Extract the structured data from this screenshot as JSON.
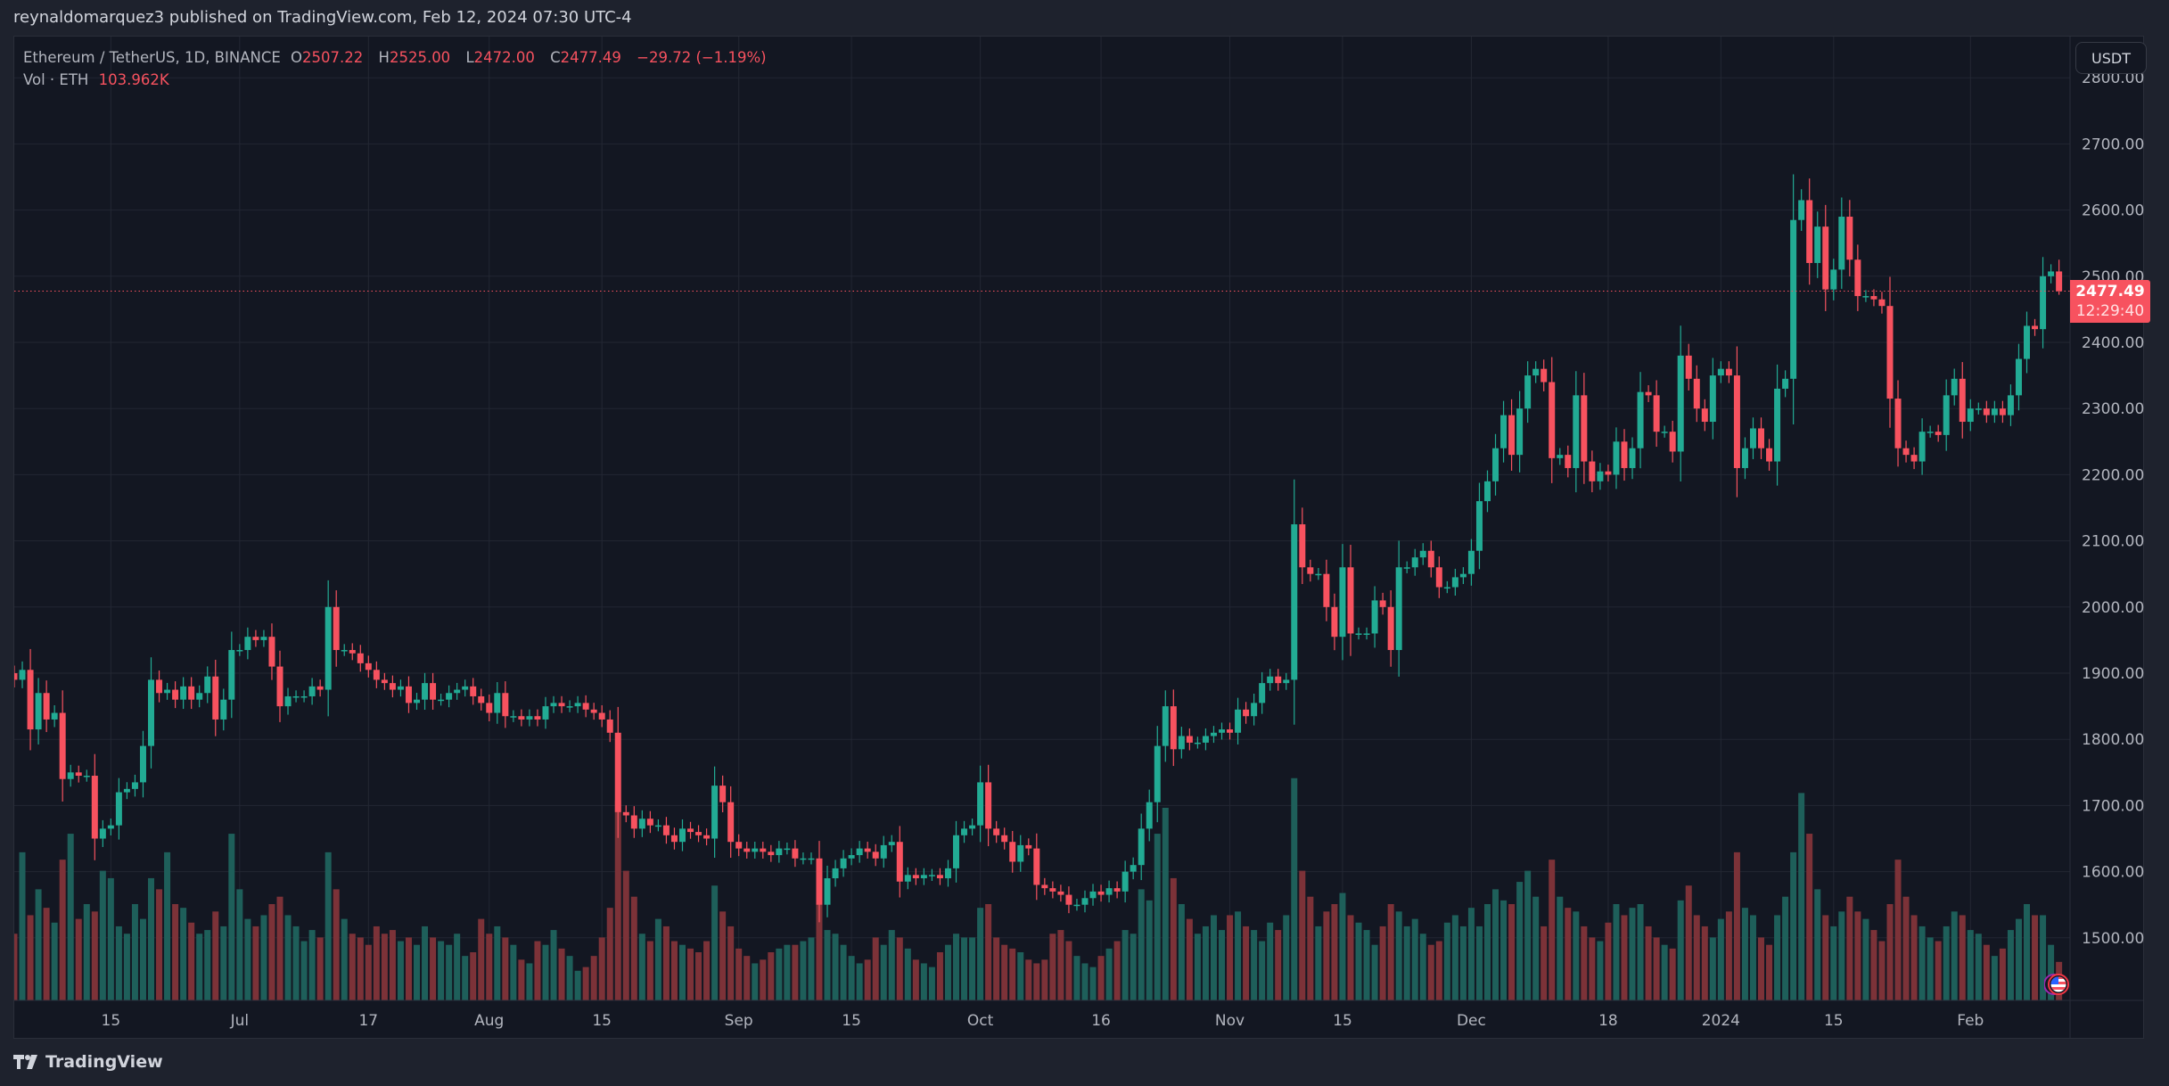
{
  "header": {
    "published": "reynaldomarquez3 published on TradingView.com, Feb 12, 2024 07:30 UTC-4"
  },
  "legend": {
    "symbol": "Ethereum / TetherUS, 1D, BINANCE",
    "o_label": "O",
    "o": "2507.22",
    "h_label": "H",
    "h": "2525.00",
    "l_label": "L",
    "l": "2472.00",
    "c_label": "C",
    "c": "2477.49",
    "change": "−29.72 (−1.19%)",
    "vol_label": "Vol · ETH",
    "vol": "103.962K"
  },
  "currency_button": "USDT",
  "last_price": {
    "price": "2477.49",
    "countdown": "12:29:40"
  },
  "branding": {
    "logo_text": "TradingView"
  },
  "colors": {
    "up": "#22ab94",
    "down": "#f7525f",
    "vol_up": "#1e5f5a",
    "vol_down": "#7c3238",
    "bg": "#131722",
    "grid": "#232733"
  },
  "chart_data": {
    "type": "candlestick",
    "title": "Ethereum / TetherUS, 1D, BINANCE",
    "ylabel": "USDT",
    "ylim": [
      1390,
      2830
    ],
    "y_ticks": [
      "1500.00",
      "1600.00",
      "1700.00",
      "1800.00",
      "1900.00",
      "2000.00",
      "2100.00",
      "2200.00",
      "2300.00",
      "2400.00",
      "2500.00",
      "2600.00",
      "2700.00",
      "2800.00"
    ],
    "x_ticks": [
      {
        "day": 12,
        "label": "15"
      },
      {
        "day": 28,
        "label": "Jul"
      },
      {
        "day": 44,
        "label": "17"
      },
      {
        "day": 59,
        "label": "Aug"
      },
      {
        "day": 73,
        "label": "15"
      },
      {
        "day": 90,
        "label": "Sep"
      },
      {
        "day": 104,
        "label": "15"
      },
      {
        "day": 120,
        "label": "Oct"
      },
      {
        "day": 135,
        "label": "16"
      },
      {
        "day": 151,
        "label": "Nov"
      },
      {
        "day": 165,
        "label": "15"
      },
      {
        "day": 181,
        "label": "Dec"
      },
      {
        "day": 198,
        "label": "18"
      },
      {
        "day": 212,
        "label": "2024"
      },
      {
        "day": 226,
        "label": "15"
      },
      {
        "day": 243,
        "label": "Feb"
      }
    ],
    "last_candle": {
      "o": 2507.22,
      "h": 2525.0,
      "l": 2472.0,
      "c": 2477.49
    },
    "closes": [
      1890,
      1905,
      1815,
      1870,
      1830,
      1840,
      1740,
      1750,
      1745,
      1745,
      1650,
      1665,
      1670,
      1720,
      1725,
      1735,
      1790,
      1890,
      1870,
      1875,
      1860,
      1880,
      1860,
      1870,
      1895,
      1830,
      1860,
      1935,
      1935,
      1955,
      1950,
      1955,
      1910,
      1850,
      1865,
      1865,
      1865,
      1880,
      1875,
      2000,
      1935,
      1935,
      1930,
      1915,
      1905,
      1890,
      1885,
      1875,
      1880,
      1855,
      1860,
      1885,
      1860,
      1860,
      1870,
      1875,
      1880,
      1865,
      1855,
      1840,
      1870,
      1835,
      1835,
      1830,
      1835,
      1830,
      1850,
      1855,
      1850,
      1850,
      1855,
      1845,
      1840,
      1830,
      1810,
      1690,
      1685,
      1665,
      1680,
      1670,
      1670,
      1655,
      1645,
      1665,
      1660,
      1655,
      1650,
      1730,
      1705,
      1645,
      1635,
      1630,
      1635,
      1630,
      1625,
      1635,
      1635,
      1620,
      1620,
      1620,
      1550,
      1590,
      1605,
      1620,
      1625,
      1635,
      1630,
      1620,
      1640,
      1645,
      1585,
      1595,
      1590,
      1595,
      1595,
      1590,
      1605,
      1655,
      1665,
      1670,
      1735,
      1665,
      1655,
      1645,
      1615,
      1640,
      1635,
      1580,
      1575,
      1570,
      1565,
      1550,
      1550,
      1560,
      1570,
      1565,
      1575,
      1570,
      1600,
      1610,
      1665,
      1705,
      1790,
      1850,
      1785,
      1805,
      1795,
      1795,
      1805,
      1810,
      1815,
      1810,
      1845,
      1835,
      1855,
      1885,
      1895,
      1885,
      1890,
      2125,
      2060,
      2050,
      2050,
      2000,
      1955,
      2060,
      1960,
      1960,
      1960,
      2010,
      2000,
      1935,
      2060,
      2060,
      2075,
      2085,
      2060,
      2030,
      2030,
      2045,
      2050,
      2085,
      2160,
      2190,
      2240,
      2290,
      2230,
      2300,
      2350,
      2360,
      2340,
      2225,
      2230,
      2210,
      2320,
      2220,
      2190,
      2205,
      2200,
      2250,
      2210,
      2240,
      2325,
      2320,
      2265,
      2265,
      2235,
      2380,
      2345,
      2300,
      2280,
      2350,
      2360,
      2350,
      2210,
      2240,
      2270,
      2240,
      2220,
      2330,
      2345,
      2585,
      2615,
      2520,
      2575,
      2480,
      2510,
      2590,
      2525,
      2470,
      2470,
      2465,
      2455,
      2315,
      2240,
      2230,
      2220,
      2265,
      2265,
      2260,
      2320,
      2345,
      2280,
      2300,
      2300,
      2290,
      2300,
      2290,
      2320,
      2375,
      2425,
      2420,
      2500,
      2507.22,
      2477.49
    ],
    "volumes_k": [
      180,
      400,
      230,
      300,
      250,
      210,
      380,
      450,
      220,
      260,
      240,
      350,
      330,
      200,
      180,
      260,
      220,
      330,
      300,
      400,
      260,
      250,
      210,
      180,
      190,
      240,
      200,
      450,
      300,
      220,
      200,
      230,
      260,
      280,
      230,
      200,
      160,
      190,
      170,
      400,
      300,
      220,
      180,
      170,
      150,
      200,
      180,
      190,
      160,
      170,
      150,
      200,
      170,
      160,
      150,
      180,
      120,
      130,
      220,
      180,
      200,
      170,
      150,
      110,
      100,
      160,
      150,
      190,
      140,
      120,
      80,
      90,
      120,
      170,
      250,
      540,
      350,
      280,
      180,
      160,
      220,
      200,
      160,
      150,
      140,
      130,
      160,
      310,
      240,
      200,
      140,
      120,
      100,
      110,
      130,
      140,
      150,
      150,
      160,
      170,
      260,
      190,
      180,
      150,
      120,
      100,
      110,
      170,
      150,
      190,
      170,
      140,
      110,
      100,
      90,
      130,
      150,
      180,
      170,
      170,
      250,
      260,
      170,
      150,
      140,
      130,
      110,
      100,
      110,
      180,
      190,
      160,
      120,
      100,
      90,
      120,
      140,
      160,
      190,
      180,
      300,
      270,
      450,
      520,
      330,
      260,
      220,
      180,
      200,
      230,
      190,
      230,
      240,
      200,
      190,
      160,
      210,
      190,
      230,
      600,
      350,
      280,
      200,
      240,
      260,
      290,
      230,
      210,
      190,
      150,
      200,
      260,
      240,
      200,
      220,
      180,
      150,
      160,
      210,
      230,
      200,
      250,
      200,
      260,
      300,
      270,
      260,
      320,
      350,
      280,
      200,
      380,
      280,
      250,
      240,
      200,
      170,
      160,
      210,
      260,
      230,
      250,
      260,
      200,
      170,
      150,
      140,
      270,
      310,
      230,
      200,
      170,
      220,
      240,
      400,
      250,
      230,
      170,
      150,
      230,
      280,
      400,
      560,
      450,
      300,
      230,
      200,
      240,
      280,
      240,
      220,
      190,
      160,
      260,
      380,
      280,
      230,
      200,
      170,
      160,
      200,
      240,
      230,
      190,
      180,
      150,
      120,
      140,
      190,
      220,
      260,
      230,
      230,
      150,
      103.962
    ],
    "volume_max_k": 650
  }
}
